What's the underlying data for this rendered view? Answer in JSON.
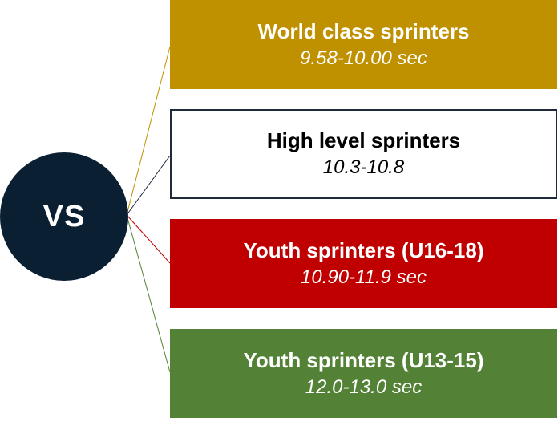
{
  "center": {
    "label": "VS",
    "color": "#0b1f33"
  },
  "tiers": [
    {
      "title": "World class sprinters",
      "time": "9.58-10.00 sec",
      "fill": "#bf9000",
      "line": "#bf9000"
    },
    {
      "title": "High level sprinters",
      "time": "10.3-10.8",
      "fill": "#ffffff",
      "line": "#1f2a3a"
    },
    {
      "title": "Youth sprinters (U16-18)",
      "time": "10.90-11.9 sec",
      "fill": "#c00000",
      "line": "#c00000"
    },
    {
      "title": "Youth sprinters (U13-15)",
      "time": "12.0-13.0 sec",
      "fill": "#538135",
      "line": "#538135"
    }
  ]
}
